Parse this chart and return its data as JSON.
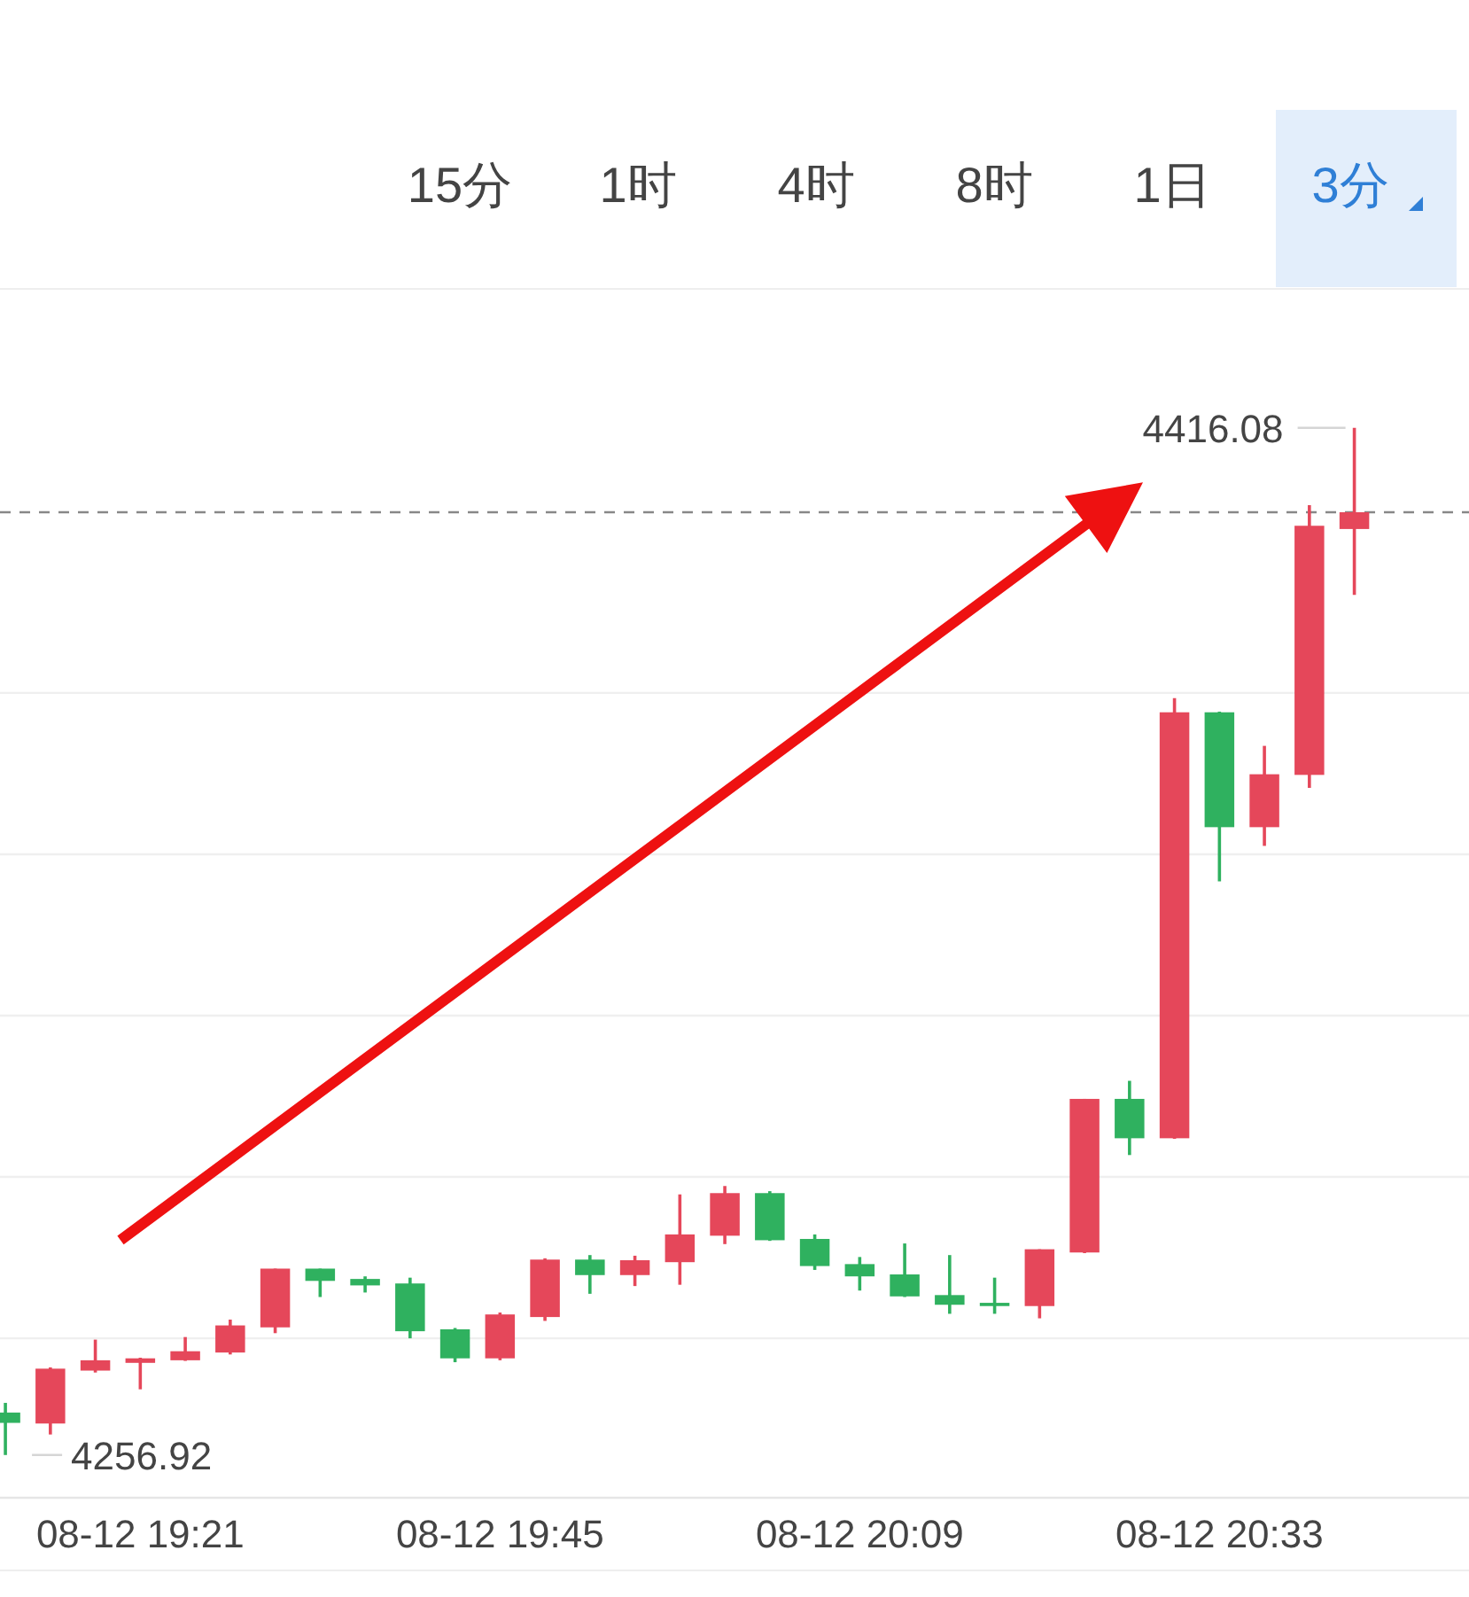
{
  "chart_data": {
    "type": "candlestick",
    "categories": [
      null,
      null,
      null,
      "08-12 19:21",
      null,
      null,
      null,
      null,
      null,
      null,
      null,
      "08-12 19:45",
      null,
      null,
      null,
      null,
      null,
      null,
      null,
      "08-12 20:09",
      null,
      null,
      null,
      null,
      null,
      null,
      null,
      "08-12 20:33",
      null,
      null,
      null
    ],
    "ohlc": [
      [
        4263.5,
        4265.0,
        4256.92,
        4261.9
      ],
      [
        4261.8,
        4270.5,
        4260.1,
        4270.3
      ],
      [
        4270.0,
        4274.8,
        4269.7,
        4271.6
      ],
      [
        4271.2,
        4272.0,
        4267.1,
        4271.9
      ],
      [
        4271.6,
        4275.2,
        4271.5,
        4273.0
      ],
      [
        4272.8,
        4277.9,
        4272.5,
        4277.0
      ],
      [
        4276.7,
        4285.8,
        4275.8,
        4285.8
      ],
      [
        4285.8,
        4285.8,
        4281.4,
        4283.9
      ],
      [
        4284.2,
        4284.6,
        4282.1,
        4283.2
      ],
      [
        4283.5,
        4284.4,
        4275.0,
        4276.1
      ],
      [
        4276.4,
        4276.6,
        4271.3,
        4271.9
      ],
      [
        4271.9,
        4279.0,
        4271.6,
        4278.7
      ],
      [
        4278.3,
        4287.4,
        4277.7,
        4287.2
      ],
      [
        4287.2,
        4287.9,
        4281.9,
        4284.8
      ],
      [
        4284.8,
        4287.8,
        4283.1,
        4287.1
      ],
      [
        4286.8,
        4297.3,
        4283.3,
        4291.1
      ],
      [
        4290.9,
        4298.6,
        4289.6,
        4297.5
      ],
      [
        4297.5,
        4297.8,
        4290.1,
        4290.2
      ],
      [
        4290.4,
        4291.1,
        4285.6,
        4286.2
      ],
      [
        4286.5,
        4287.6,
        4282.4,
        4284.6
      ],
      [
        4284.9,
        4289.7,
        4281.4,
        4281.5
      ],
      [
        4281.7,
        4287.9,
        4278.8,
        4280.2
      ],
      [
        4280.5,
        4284.4,
        4278.8,
        4280.0
      ],
      [
        4280.0,
        4288.8,
        4278.1,
        4288.8
      ],
      [
        4288.3,
        4312.1,
        4288.2,
        4312.1
      ],
      [
        4312.1,
        4314.9,
        4303.4,
        4306.0
      ],
      [
        4306.0,
        4374.2,
        4305.9,
        4372.0
      ],
      [
        4372.0,
        4372.1,
        4345.8,
        4354.2
      ],
      [
        4354.2,
        4366.8,
        4351.3,
        4362.4
      ],
      [
        4362.3,
        4404.1,
        4360.3,
        4400.9
      ],
      [
        4400.4,
        4416.08,
        4390.2,
        4403.0
      ]
    ],
    "colors": [
      "#2fb15f",
      "#e5475a",
      "#e5475a",
      "#e5475a",
      "#e5475a",
      "#e5475a",
      "#e5475a",
      "#2fb15f",
      "#2fb15f",
      "#2fb15f",
      "#2fb15f",
      "#e5475a",
      "#e5475a",
      "#2fb15f",
      "#e5475a",
      "#e5475a",
      "#e5475a",
      "#2fb15f",
      "#2fb15f",
      "#2fb15f",
      "#2fb15f",
      "#2fb15f",
      "#2fb15f",
      "#e5475a",
      "#e5475a",
      "#2fb15f",
      "#e5475a",
      "#2fb15f",
      "#e5475a",
      "#e5475a",
      "#e5475a"
    ],
    "ylim": [
      4250.3,
      4437.6
    ],
    "yticks": [
      {
        "value": 4275,
        "label": null
      },
      {
        "value": 4300,
        "label": null
      },
      {
        "value": 4325,
        "label": null
      },
      {
        "value": 4350,
        "label": null
      },
      {
        "value": 4375,
        "label": null
      }
    ],
    "grid": "y",
    "ref_lines": [
      {
        "axis": "y",
        "value": 4403.0,
        "label": null,
        "color": "#888888",
        "line_style": "dashed"
      }
    ],
    "annotations": [
      "15分",
      "1时",
      "4时",
      "8时",
      "1日",
      "3分",
      "4416.08",
      "4256.92"
    ]
  }
}
